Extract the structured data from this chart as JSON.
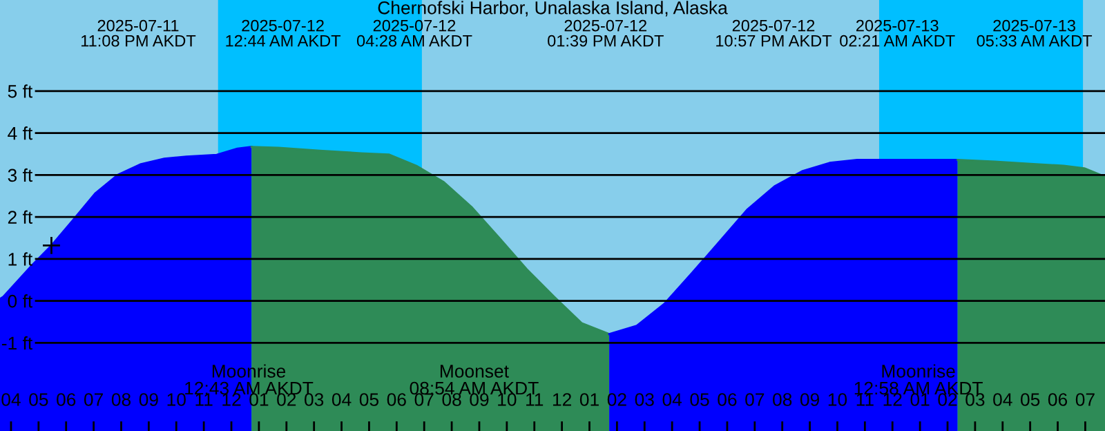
{
  "chart_data": {
    "type": "area",
    "title": "Chernofski Harbor, Unalaska Island, Alaska",
    "xlim": [
      "2025-07-11T15:36",
      "2025-07-13T07:43"
    ],
    "ylim": [
      -3.1,
      7.17
    ],
    "xticks": [
      {
        "value": "2025-07-11T16:00",
        "label": "04"
      },
      {
        "value": "2025-07-11T17:00",
        "label": "05"
      },
      {
        "value": "2025-07-11T18:00",
        "label": "06"
      },
      {
        "value": "2025-07-11T19:00",
        "label": "07"
      },
      {
        "value": "2025-07-11T20:00",
        "label": "08"
      },
      {
        "value": "2025-07-11T21:00",
        "label": "09"
      },
      {
        "value": "2025-07-11T22:00",
        "label": "10"
      },
      {
        "value": "2025-07-11T23:00",
        "label": "11"
      },
      {
        "value": "2025-07-12T00:00",
        "label": "12"
      },
      {
        "value": "2025-07-12T01:00",
        "label": "01"
      },
      {
        "value": "2025-07-12T02:00",
        "label": "02"
      },
      {
        "value": "2025-07-12T03:00",
        "label": "03"
      },
      {
        "value": "2025-07-12T04:00",
        "label": "04"
      },
      {
        "value": "2025-07-12T05:00",
        "label": "05"
      },
      {
        "value": "2025-07-12T06:00",
        "label": "06"
      },
      {
        "value": "2025-07-12T07:00",
        "label": "07"
      },
      {
        "value": "2025-07-12T08:00",
        "label": "08"
      },
      {
        "value": "2025-07-12T09:00",
        "label": "09"
      },
      {
        "value": "2025-07-12T10:00",
        "label": "10"
      },
      {
        "value": "2025-07-12T11:00",
        "label": "11"
      },
      {
        "value": "2025-07-12T12:00",
        "label": "12"
      },
      {
        "value": "2025-07-12T13:00",
        "label": "01"
      },
      {
        "value": "2025-07-12T14:00",
        "label": "02"
      },
      {
        "value": "2025-07-12T15:00",
        "label": "03"
      },
      {
        "value": "2025-07-12T16:00",
        "label": "04"
      },
      {
        "value": "2025-07-12T17:00",
        "label": "05"
      },
      {
        "value": "2025-07-12T18:00",
        "label": "06"
      },
      {
        "value": "2025-07-12T19:00",
        "label": "07"
      },
      {
        "value": "2025-07-12T20:00",
        "label": "08"
      },
      {
        "value": "2025-07-12T21:00",
        "label": "09"
      },
      {
        "value": "2025-07-12T22:00",
        "label": "10"
      },
      {
        "value": "2025-07-12T23:00",
        "label": "11"
      },
      {
        "value": "2025-07-13T00:00",
        "label": "12"
      },
      {
        "value": "2025-07-13T01:00",
        "label": "01"
      },
      {
        "value": "2025-07-13T02:00",
        "label": "02"
      },
      {
        "value": "2025-07-13T03:00",
        "label": "03"
      },
      {
        "value": "2025-07-13T04:00",
        "label": "04"
      },
      {
        "value": "2025-07-13T05:00",
        "label": "05"
      },
      {
        "value": "2025-07-13T06:00",
        "label": "06"
      },
      {
        "value": "2025-07-13T07:00",
        "label": "07"
      }
    ],
    "yticks": [
      {
        "value": -1,
        "label": "-1 ft"
      },
      {
        "value": 0,
        "label": "0 ft"
      },
      {
        "value": 1,
        "label": "1 ft"
      },
      {
        "value": 2,
        "label": "2 ft"
      },
      {
        "value": 3,
        "label": "3 ft"
      },
      {
        "value": 4,
        "label": "4 ft"
      },
      {
        "value": 5,
        "label": "5 ft"
      }
    ],
    "grid": "y",
    "bands": [
      {
        "axis": "x",
        "from": "2025-07-11T23:31",
        "to": "2025-07-12T06:55",
        "color": "#00bfff"
      },
      {
        "axis": "x",
        "from": "2025-07-12T23:31",
        "to": "2025-07-13T06:55",
        "color": "#00bfff"
      }
    ],
    "series": [
      {
        "color": "#0000ff",
        "x": [
          "2025-07-11T15:36",
          "2025-07-11T15:43",
          "2025-07-11T16:43",
          "2025-07-11T17:28",
          "2025-07-11T18:13",
          "2025-07-11T19:04",
          "2025-07-11T19:52",
          "2025-07-11T20:43",
          "2025-07-11T21:34",
          "2025-07-11T22:22",
          "2025-07-11T23:28",
          "2025-07-12T00:13",
          "2025-07-12T00:44"
        ],
        "values": [
          0.05,
          0.1,
          0.82,
          1.32,
          1.9,
          2.57,
          3.0,
          3.26,
          3.39,
          3.44,
          3.48,
          3.63,
          3.67
        ]
      },
      {
        "color": "#2e8b57",
        "x": [
          "2025-07-12T00:44",
          "2025-07-12T01:43",
          "2025-07-12T03:13",
          "2025-07-12T04:43",
          "2025-07-12T05:43",
          "2025-07-12T06:43",
          "2025-07-12T07:43",
          "2025-07-12T08:43",
          "2025-07-12T09:43",
          "2025-07-12T10:43",
          "2025-07-12T11:43",
          "2025-07-12T12:43",
          "2025-07-12T13:43"
        ],
        "values": [
          3.67,
          3.65,
          3.58,
          3.52,
          3.49,
          3.22,
          2.83,
          2.24,
          1.51,
          0.76,
          0.1,
          -0.53,
          -0.79
        ]
      },
      {
        "color": "#0000ff",
        "x": [
          "2025-07-12T13:43",
          "2025-07-12T14:43",
          "2025-07-12T15:43",
          "2025-07-12T16:43",
          "2025-07-12T17:43",
          "2025-07-12T18:43",
          "2025-07-12T19:43",
          "2025-07-12T20:43",
          "2025-07-12T21:43",
          "2025-07-12T22:43",
          "2025-07-13T00:13",
          "2025-07-13T02:22"
        ],
        "values": [
          -0.79,
          -0.59,
          -0.07,
          0.66,
          1.41,
          2.17,
          2.73,
          3.09,
          3.29,
          3.36,
          3.36,
          3.36
        ]
      },
      {
        "color": "#2e8b57",
        "x": [
          "2025-07-13T02:22",
          "2025-07-13T03:43",
          "2025-07-13T05:13",
          "2025-07-13T06:13",
          "2025-07-13T06:58",
          "2025-07-13T07:43"
        ],
        "values": [
          3.36,
          3.32,
          3.26,
          3.22,
          3.16,
          2.96
        ]
      },
      {
        "type": "scatter",
        "color": "#000000",
        "marker": "cross",
        "x": [
          "2025-07-11T17:28"
        ],
        "values": [
          1.32
        ]
      }
    ],
    "annotations": [
      "2025-07-11\n11:08 PM AKDT",
      "2025-07-12\n12:44 AM AKDT",
      "2025-07-12\n04:28 AM AKDT",
      "2025-07-12\n01:39 PM AKDT",
      "2025-07-12\n10:57 PM AKDT",
      "2025-07-13\n02:21 AM AKDT",
      "2025-07-13\n05:33 AM AKDT",
      "Moonrise\n12:43 AM AKDT",
      "Moonset\n08:54 AM AKDT",
      "Moonrise\n12:58 AM AKDT"
    ]
  }
}
